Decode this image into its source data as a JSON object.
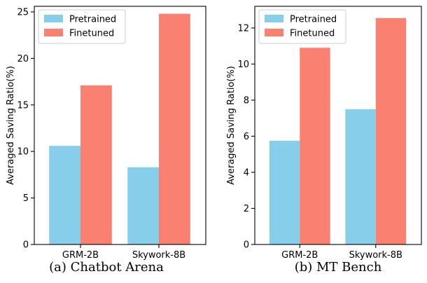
{
  "chart_data": [
    {
      "type": "bar",
      "categories": [
        "GRM-2B",
        "Skywork-8B"
      ],
      "series": [
        {
          "name": "Pretrained",
          "values": [
            10.6,
            8.3
          ],
          "color": "#87ceeb"
        },
        {
          "name": "Finetuned",
          "values": [
            17.1,
            24.8
          ],
          "color": "#fa8072"
        }
      ],
      "title": "",
      "xlabel": "",
      "ylabel": "Averaged Saving Ratio(%)",
      "ylim": [
        0,
        25.6
      ],
      "yticks": [
        0,
        5,
        10,
        15,
        20,
        25
      ],
      "ytick_labels": [
        "0",
        "5",
        "10",
        "15",
        "20",
        "25"
      ],
      "grid": false,
      "legend_position": "top-left",
      "caption": "(a) Chatbot Arena"
    },
    {
      "type": "bar",
      "categories": [
        "GRM-2B",
        "Skywork-8B"
      ],
      "series": [
        {
          "name": "Pretrained",
          "values": [
            5.75,
            7.5
          ],
          "color": "#87ceeb"
        },
        {
          "name": "Finetuned",
          "values": [
            10.9,
            12.55
          ],
          "color": "#fa8072"
        }
      ],
      "title": "",
      "xlabel": "",
      "ylabel": "Averaged Saving Ratio(%)",
      "ylim": [
        0,
        13.2
      ],
      "yticks": [
        0,
        2,
        4,
        6,
        8,
        10,
        12
      ],
      "ytick_labels": [
        "0",
        "2",
        "4",
        "6",
        "8",
        "10",
        "12"
      ],
      "grid": false,
      "legend_position": "top-left",
      "caption": "(b) MT Bench"
    }
  ]
}
